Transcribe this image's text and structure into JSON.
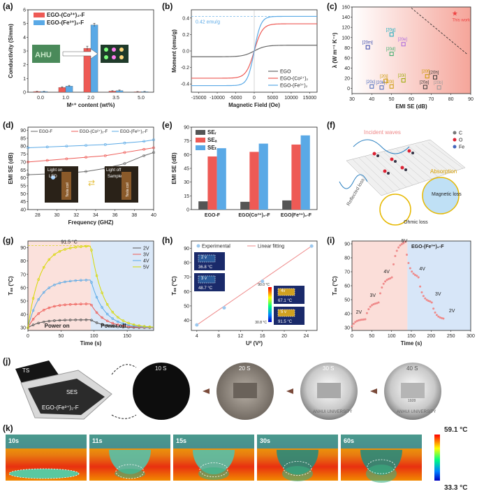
{
  "panel_labels": {
    "a": "(a)",
    "b": "(b)",
    "c": "(c)",
    "d": "(d)",
    "e": "(e)",
    "f": "(f)",
    "g": "(g)",
    "h": "(h)",
    "i": "(i)",
    "j": "(j)",
    "k": "(k)"
  },
  "colors": {
    "red": "#ee5a55",
    "blue": "#5aa9e6",
    "pink_bg": "#f8c8c0",
    "blue_bg": "#bcd6f3",
    "yellow": "#e6e600",
    "grey": "#666666"
  },
  "chart_data": [
    {
      "id": "a",
      "type": "bar",
      "xlabel": "Mⁿ⁺ content (wt%)",
      "ylabel": "Conductivity (S/mm)",
      "categories": [
        "0.0",
        "1.0",
        "2.0",
        "3.5",
        "5.0"
      ],
      "yticks": [
        "0",
        "1",
        "2",
        "3",
        "4",
        "5",
        "6"
      ],
      "ylim": [
        0,
        6
      ],
      "series": [
        {
          "name": "EGO-(Co²⁺)₂-F",
          "values": [
            0.05,
            0.35,
            3.2,
            0.08,
            0.03
          ],
          "errors": [
            0.02,
            0.05,
            0.15,
            0.03,
            0.02
          ]
        },
        {
          "name": "EGO-(Fe³⁺)₂-F",
          "values": [
            0.05,
            0.45,
            4.9,
            0.12,
            0.04
          ],
          "errors": [
            0.02,
            0.05,
            0.12,
            0.04,
            0.02
          ]
        }
      ]
    },
    {
      "id": "b",
      "type": "line",
      "xlabel": "Magnetic Field (Oe)",
      "ylabel": "Moment (emu/g)",
      "xticks": [
        "-15000",
        "-10000",
        "-5000",
        "0",
        "5000",
        "10000",
        "15000"
      ],
      "yticks": [
        "-0.4",
        "-0.2",
        "0.0",
        "0.2",
        "0.4"
      ],
      "xlim": [
        -17000,
        17000
      ],
      "ylim": [
        -0.5,
        0.5
      ],
      "annotation": "0.42 emu/g",
      "ms_value": 0.42,
      "series": [
        {
          "name": "EGO",
          "ms": 0.07,
          "k": 3000
        },
        {
          "name": "EGO-(Co²⁺)₂",
          "ms": 0.33,
          "k": 2200
        },
        {
          "name": "EGO-(Fe³⁺)₂",
          "ms": 0.42,
          "k": 1800
        }
      ]
    },
    {
      "id": "c",
      "type": "scatter",
      "xlabel": "EMI SE (dB)",
      "ylabel": "λ (W m⁻¹ K⁻¹)",
      "xticks": [
        "30",
        "40",
        "50",
        "60",
        "70",
        "80",
        "90"
      ],
      "yticks": [
        "0",
        "20",
        "40",
        "60",
        "80",
        "100",
        "120",
        "140",
        "160"
      ],
      "xlim": [
        30,
        90
      ],
      "ylim": [
        -10,
        160
      ],
      "points": [
        {
          "label": "This work",
          "x": 82,
          "y": 147
        },
        {
          "label": "[20g]",
          "x": 50,
          "y": 106
        },
        {
          "label": "[20m]",
          "x": 38,
          "y": 81
        },
        {
          "label": "[20e]",
          "x": 56,
          "y": 87
        },
        {
          "label": "[20d]",
          "x": 50,
          "y": 68
        },
        {
          "label": "[20f]",
          "x": 68,
          "y": 24
        },
        {
          "label": "[20h]",
          "x": 72,
          "y": 22
        },
        {
          "label": "[20j]",
          "x": 47,
          "y": 15
        },
        {
          "label": "[20i]",
          "x": 56,
          "y": 16
        },
        {
          "label": "[20l]",
          "x": 50,
          "y": 4
        },
        {
          "label": "[20c]",
          "x": 40,
          "y": 4
        },
        {
          "label": "[20k]",
          "x": 45,
          "y": 2
        },
        {
          "label": "[20a]",
          "x": 67,
          "y": 3
        },
        {
          "label": "[20b]",
          "x": 74,
          "y": 2
        }
      ]
    },
    {
      "id": "d",
      "type": "line",
      "xlabel": "Frequency (GHZ)",
      "ylabel": "EMI SE (dB)",
      "xticks": [
        "28",
        "30",
        "32",
        "34",
        "36",
        "38",
        "40"
      ],
      "yticks": [
        "40",
        "45",
        "50",
        "55",
        "60",
        "65",
        "70",
        "75",
        "80",
        "85",
        "90"
      ],
      "xlim": [
        27,
        40
      ],
      "ylim": [
        40,
        92
      ],
      "series": [
        {
          "name": "EGO-F",
          "x": [
            27,
            29,
            31,
            33,
            35,
            37,
            39,
            40
          ],
          "y": [
            62,
            62.5,
            63,
            64,
            66,
            69,
            74,
            76
          ]
        },
        {
          "name": "EGO-(Co²⁺)₂-F",
          "x": [
            27,
            29,
            31,
            33,
            35,
            37,
            39,
            40
          ],
          "y": [
            70,
            71,
            72,
            73,
            74,
            76,
            78,
            79
          ]
        },
        {
          "name": "EGO-(Fe³⁺)₂-F",
          "x": [
            27,
            29,
            31,
            33,
            35,
            37,
            39,
            40
          ],
          "y": [
            79,
            79.5,
            80,
            80.5,
            81,
            82,
            83,
            84
          ]
        }
      ],
      "photo_labels": [
        "Light on",
        "LED",
        "Light off",
        "Sample",
        "Tesla coil",
        "Tesla coil"
      ]
    },
    {
      "id": "e",
      "type": "bar",
      "ylabel": "EMI SE (dB)",
      "categories": [
        "EGO-F",
        "EGO(Co²⁺)₂-F",
        "EGO(Fe³⁺)₂-F"
      ],
      "yticks": [
        "0",
        "15",
        "30",
        "45",
        "60",
        "75",
        "90"
      ],
      "ylim": [
        0,
        90
      ],
      "series": [
        {
          "name": "SEᵣ",
          "values": [
            9,
            8.5,
            10
          ]
        },
        {
          "name": "SEₐ",
          "values": [
            58,
            63,
            71
          ]
        },
        {
          "name": "SEₜ",
          "values": [
            67,
            72,
            81
          ]
        }
      ]
    },
    {
      "id": "g",
      "type": "line",
      "xlabel": "Time (s)",
      "ylabel": "Tₛₛ (°C)",
      "xticks": [
        "0",
        "50",
        "100",
        "150"
      ],
      "yticks": [
        "30",
        "40",
        "50",
        "60",
        "70",
        "80",
        "90"
      ],
      "xlim": [
        0,
        190
      ],
      "ylim": [
        28,
        95
      ],
      "annotation": "91.5 °C",
      "region_labels": [
        "Power on",
        "Power off"
      ],
      "series": [
        {
          "name": "2V",
          "ss": 36
        },
        {
          "name": "3V",
          "ss": 48
        },
        {
          "name": "4V",
          "ss": 66
        },
        {
          "name": "5V",
          "ss": 91.5
        }
      ]
    },
    {
      "id": "h",
      "type": "scatter",
      "xlabel": "U² (V²)",
      "ylabel": "Tₛₛ (°C)",
      "xticks": [
        "4",
        "8",
        "12",
        "16",
        "20",
        "24"
      ],
      "yticks": [
        "40",
        "50",
        "60",
        "70",
        "80",
        "90"
      ],
      "xlim": [
        3,
        26
      ],
      "ylim": [
        33,
        95
      ],
      "series": [
        {
          "name": "Experimental",
          "x": [
            4,
            9,
            16,
            25
          ],
          "y": [
            36.8,
            48.7,
            67.1,
            91.5
          ]
        },
        {
          "name": "Linear fitting",
          "x": [
            4,
            25
          ],
          "y": [
            36.8,
            91.5
          ]
        }
      ],
      "insets": [
        {
          "voltage": "2 v",
          "temp": "36.8 °C"
        },
        {
          "voltage": "3 v",
          "temp": "48.7 °C"
        },
        {
          "voltage": "4v",
          "temp": "67.1 °C"
        },
        {
          "voltage": "5 v",
          "temp": "91.5 °C"
        }
      ],
      "colorbar": [
        "90.0 °C",
        "30.8 °C"
      ]
    },
    {
      "id": "i",
      "type": "scatter",
      "xlabel": "Time (s)",
      "ylabel": "Tₛₛ (°C)",
      "xticks": [
        "0",
        "50",
        "100",
        "150",
        "200",
        "250",
        "300"
      ],
      "yticks": [
        "30",
        "40",
        "50",
        "60",
        "70",
        "80",
        "90"
      ],
      "xlim": [
        0,
        300
      ],
      "ylim": [
        28,
        92
      ],
      "region_label": "EGO-(Fe³⁺)₂-F",
      "step_labels": [
        "2V",
        "3V",
        "4V",
        "5V",
        "4V",
        "3V",
        "2V"
      ]
    }
  ],
  "panel_f": {
    "labels": [
      "Incident waves",
      "Absorption",
      "Magnetic loss",
      "Reflected loss",
      "Ohmic loss"
    ],
    "legend": [
      "C",
      "O",
      "Fe"
    ]
  },
  "panel_j": {
    "labels": [
      "TS",
      "SES",
      "EGO-(Fe³⁺)₂-F"
    ],
    "times": [
      "10 S",
      "20 S",
      "30 S",
      "40 S"
    ],
    "coin_text": "ANHUI UNIVERSITY",
    "coin_year": "1928"
  },
  "panel_k": {
    "times": [
      "10s",
      "11s",
      "15s",
      "30s",
      "60s"
    ],
    "scale_max": "59.1 °C",
    "scale_min": "33.3 °C"
  }
}
